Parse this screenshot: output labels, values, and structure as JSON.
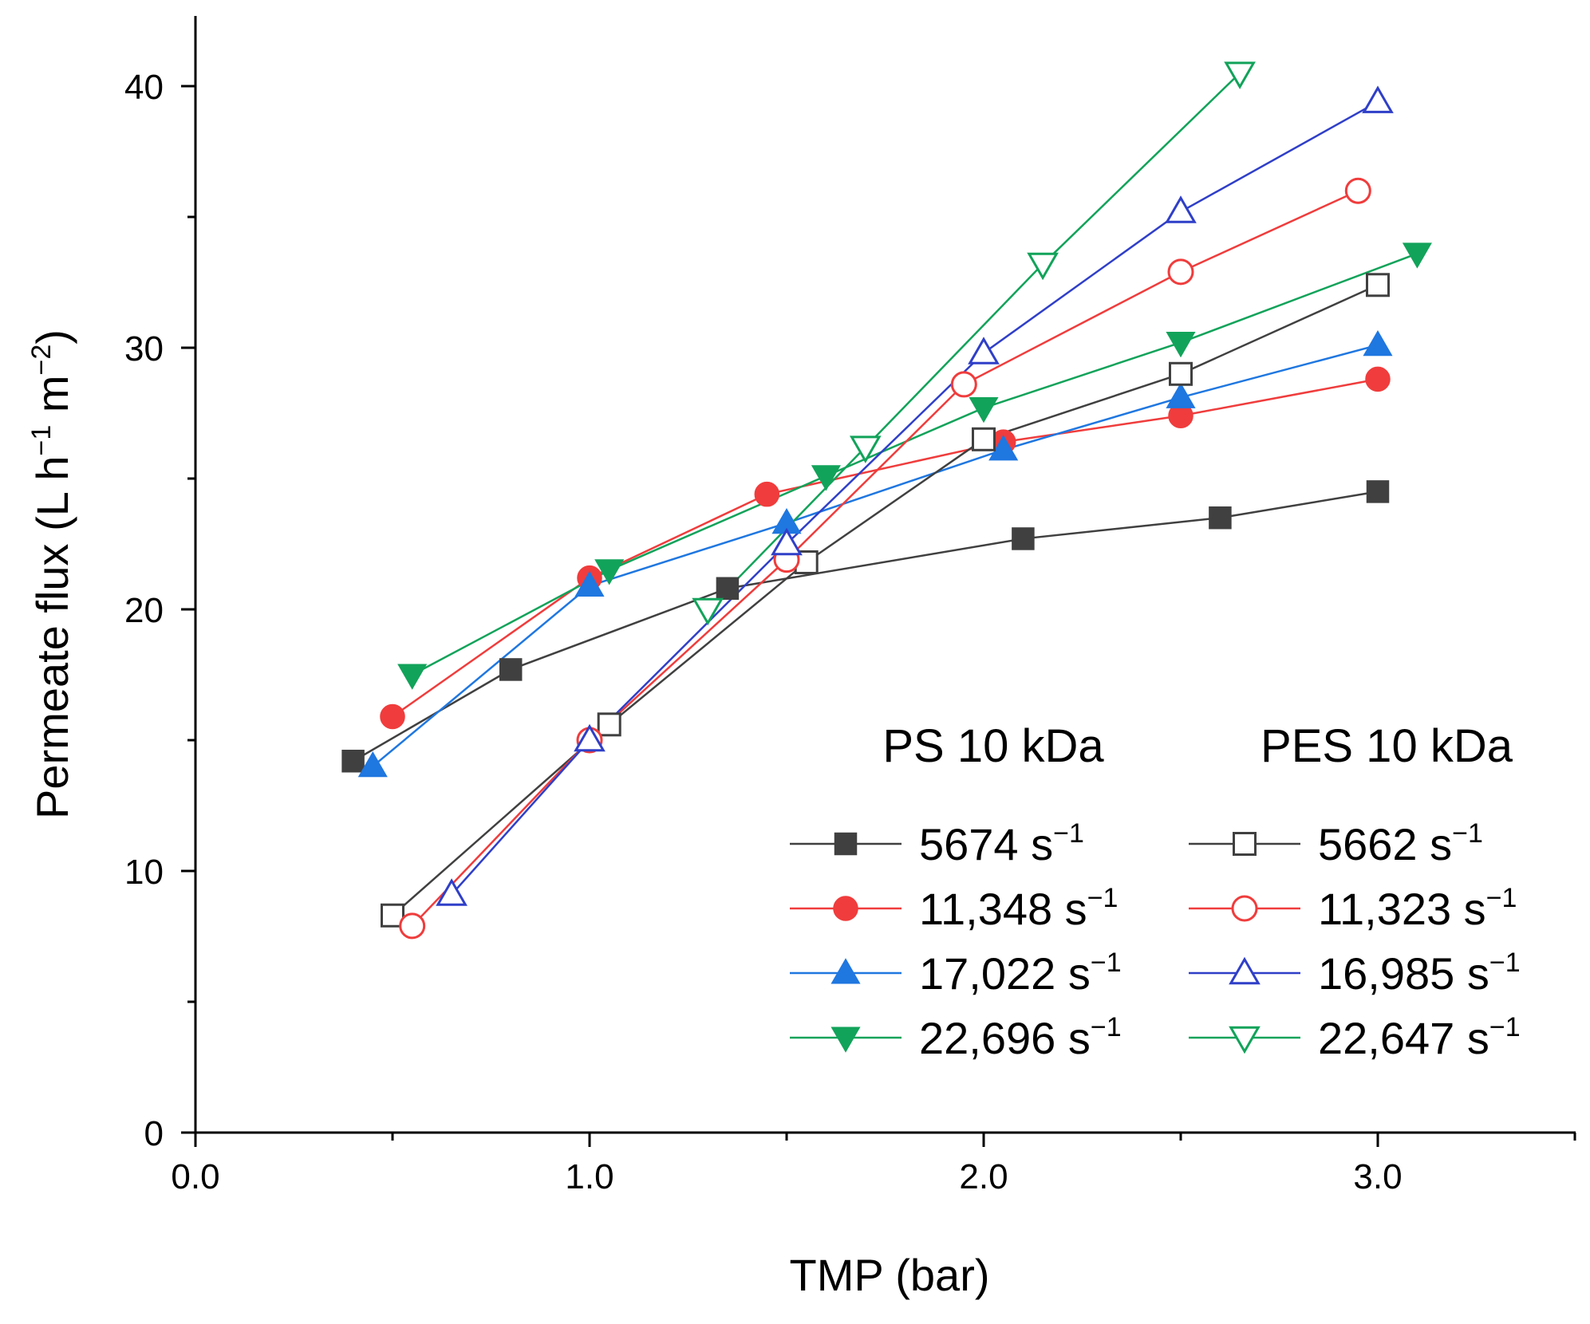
{
  "chart_data": {
    "type": "line",
    "title": "",
    "xlabel": "TMP (bar)",
    "ylabel_main": "Permeate flux (L h",
    "ylabel_exp1": "−1",
    "ylabel_mid": " m",
    "ylabel_exp2": "−2",
    "ylabel_end": ")",
    "xlim": [
      0,
      3.5
    ],
    "ylim": [
      0,
      43
    ],
    "xticks": [
      0.0,
      1.0,
      2.0,
      3.0
    ],
    "xtick_labels": [
      "0.0",
      "1.0",
      "2.0",
      "3.0"
    ],
    "yticks": [
      0,
      10,
      20,
      30,
      40
    ],
    "ytick_labels": [
      "0",
      "10",
      "20",
      "30",
      "40"
    ],
    "legend_position": "lower-right",
    "legend_groups": [
      "PS 10 kDa",
      "PES 10 kDa"
    ],
    "series": [
      {
        "name": "5674 s⁻¹",
        "label_value": "5674 s",
        "label_exp": "−1",
        "group": "PS 10 kDa",
        "color": "#404040",
        "marker": "square",
        "filled": true,
        "x": [
          0.4,
          0.8,
          1.35,
          2.1,
          2.6,
          3.0
        ],
        "y": [
          14.2,
          17.7,
          20.8,
          22.7,
          23.5,
          24.5
        ]
      },
      {
        "name": "11,348 s⁻¹",
        "label_value": "11,348 s",
        "label_exp": "−1",
        "group": "PS 10 kDa",
        "color": "#f03c3c",
        "marker": "circle",
        "filled": true,
        "x": [
          0.5,
          1.0,
          1.45,
          2.05,
          2.5,
          3.0
        ],
        "y": [
          15.9,
          21.2,
          24.4,
          26.4,
          27.4,
          28.8
        ]
      },
      {
        "name": "17,022 s⁻¹",
        "label_value": "17,022 s",
        "label_exp": "−1",
        "group": "PS 10 kDa",
        "color": "#1f77e0",
        "marker": "triangle-up",
        "filled": true,
        "x": [
          0.45,
          1.0,
          1.5,
          2.05,
          2.5,
          3.0
        ],
        "y": [
          14.0,
          20.9,
          23.3,
          26.1,
          28.1,
          30.1
        ]
      },
      {
        "name": "22,696 s⁻¹",
        "label_value": "22,696 s",
        "label_exp": "−1",
        "group": "PS 10 kDa",
        "color": "#12a35a",
        "marker": "triangle-down",
        "filled": true,
        "x": [
          0.55,
          1.05,
          1.6,
          2.0,
          2.5,
          3.1
        ],
        "y": [
          17.5,
          21.5,
          25.1,
          27.7,
          30.2,
          33.6
        ]
      },
      {
        "name": "5662 s⁻¹",
        "label_value": "5662 s",
        "label_exp": "−1",
        "group": "PES 10 kDa",
        "color": "#404040",
        "marker": "square",
        "filled": false,
        "x": [
          0.5,
          1.05,
          1.55,
          2.0,
          2.5,
          3.0
        ],
        "y": [
          8.3,
          15.6,
          21.8,
          26.5,
          29.0,
          32.4
        ]
      },
      {
        "name": "11,323 s⁻¹",
        "label_value": "11,323 s",
        "label_exp": "−1",
        "group": "PES 10 kDa",
        "color": "#f03c3c",
        "marker": "circle",
        "filled": false,
        "x": [
          0.55,
          1.0,
          1.5,
          1.95,
          2.5,
          2.95
        ],
        "y": [
          7.9,
          15.0,
          21.9,
          28.6,
          32.9,
          36.0
        ]
      },
      {
        "name": "16,985 s⁻¹",
        "label_value": "16,985 s",
        "label_exp": "−1",
        "group": "PES 10 kDa",
        "color": "#2f3fc8",
        "marker": "triangle-up",
        "filled": false,
        "x": [
          0.65,
          1.0,
          1.5,
          2.0,
          2.5,
          3.0
        ],
        "y": [
          9.1,
          15.0,
          22.5,
          29.8,
          35.2,
          39.4
        ]
      },
      {
        "name": "22,647 s⁻¹",
        "label_value": "22,647 s",
        "label_exp": "−1",
        "group": "PES 10 kDa",
        "color": "#12a35a",
        "marker": "triangle-down",
        "filled": false,
        "x": [
          1.3,
          1.7,
          2.15,
          2.65
        ],
        "y": [
          20.0,
          26.2,
          33.2,
          40.5
        ]
      }
    ]
  }
}
